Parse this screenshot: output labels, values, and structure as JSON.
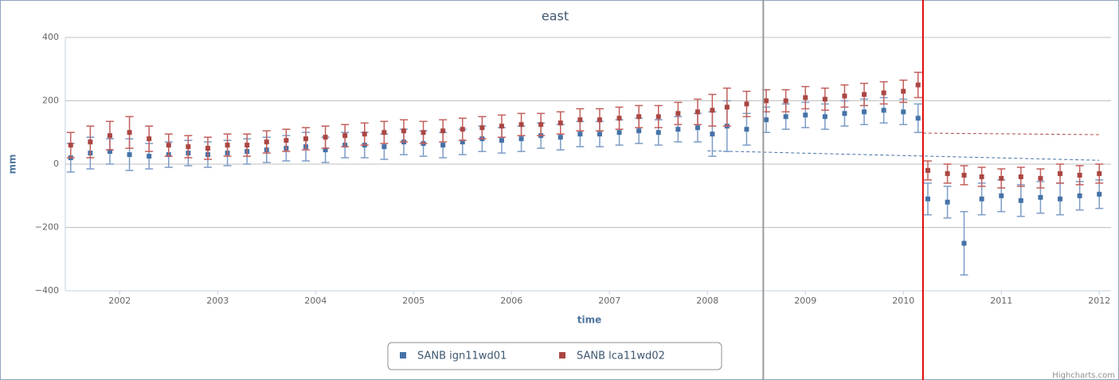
{
  "chart_data": {
    "type": "errorbar-scatter",
    "title": "east",
    "x_label": "time",
    "y_label": "mm",
    "credits": "Highcharts.com",
    "xlim": [
      2001.445,
      2012.12
    ],
    "xticks": [
      2002,
      2003,
      2004,
      2005,
      2006,
      2007,
      2008,
      2009,
      2010,
      2011,
      2012
    ],
    "ylim": [
      -400,
      400
    ],
    "yticks": [
      400,
      200,
      0,
      {
        "value": -200,
        "label": "−200"
      },
      {
        "value": -400,
        "label": "−400"
      }
    ],
    "grid": true,
    "x": [
      2001.5,
      2001.7,
      2001.9,
      2002.1,
      2002.3,
      2002.5,
      2002.7,
      2002.9,
      2003.1,
      2003.3,
      2003.5,
      2003.7,
      2003.9,
      2004.1,
      2004.3,
      2004.5,
      2004.7,
      2004.9,
      2005.1,
      2005.3,
      2005.5,
      2005.7,
      2005.9,
      2006.1,
      2006.3,
      2006.5,
      2006.7,
      2006.9,
      2007.1,
      2007.3,
      2007.5,
      2007.7,
      2007.9,
      2008.05,
      2008.2,
      2008.4,
      2008.6,
      2008.8,
      2009.0,
      2009.2,
      2009.4,
      2009.6,
      2009.8,
      2010.0,
      2010.15,
      2010.25,
      2010.45,
      2010.62,
      2010.8,
      2011.0,
      2011.2,
      2011.4,
      2011.6,
      2011.8,
      2012.0
    ],
    "series": [
      {
        "name": "SANB ign11wd01",
        "color": "#4572A7",
        "error_color": "#7d9cc6",
        "values": [
          20,
          35,
          40,
          30,
          25,
          30,
          35,
          30,
          35,
          40,
          45,
          50,
          55,
          45,
          60,
          60,
          55,
          70,
          65,
          60,
          70,
          80,
          75,
          80,
          90,
          85,
          95,
          95,
          100,
          105,
          100,
          110,
          115,
          95,
          120,
          110,
          140,
          150,
          155,
          150,
          160,
          165,
          170,
          165,
          145,
          -110,
          -120,
          -250,
          -110,
          -100,
          -115,
          -105,
          -110,
          -100,
          -95
        ],
        "errors": [
          45,
          50,
          40,
          50,
          40,
          40,
          40,
          40,
          40,
          40,
          40,
          40,
          45,
          40,
          40,
          40,
          40,
          40,
          40,
          40,
          40,
          40,
          40,
          40,
          40,
          40,
          40,
          40,
          40,
          40,
          40,
          40,
          45,
          70,
          80,
          50,
          40,
          40,
          40,
          40,
          40,
          40,
          40,
          40,
          45,
          50,
          50,
          100,
          50,
          50,
          50,
          50,
          50,
          45,
          45
        ]
      },
      {
        "name": "SANB lca11wd02",
        "color": "#AA4643",
        "error_color": "#c25f5c",
        "values": [
          60,
          70,
          90,
          100,
          80,
          60,
          55,
          50,
          60,
          60,
          70,
          75,
          80,
          85,
          90,
          95,
          100,
          105,
          100,
          105,
          110,
          115,
          120,
          125,
          125,
          130,
          140,
          140,
          145,
          150,
          150,
          160,
          165,
          170,
          180,
          190,
          200,
          200,
          210,
          205,
          215,
          220,
          225,
          230,
          250,
          -20,
          -30,
          -35,
          -40,
          -45,
          -40,
          -45,
          -30,
          -35,
          -30
        ],
        "errors": [
          40,
          50,
          45,
          50,
          40,
          35,
          35,
          35,
          35,
          35,
          35,
          35,
          35,
          35,
          35,
          35,
          35,
          35,
          35,
          35,
          35,
          35,
          35,
          35,
          35,
          35,
          35,
          35,
          35,
          35,
          35,
          35,
          40,
          50,
          60,
          40,
          35,
          35,
          35,
          35,
          35,
          35,
          35,
          35,
          40,
          30,
          30,
          30,
          30,
          30,
          30,
          30,
          30,
          30,
          30
        ]
      }
    ],
    "trend_lines": [
      {
        "color": "#4572A7",
        "x": [
          2008.0,
          2012.0
        ],
        "values": [
          42,
          12
        ]
      },
      {
        "color": "#AA4643",
        "x": [
          2010.2,
          2012.0
        ],
        "values": [
          98,
          93
        ]
      }
    ],
    "plot_lines": [
      {
        "value": 2008.57,
        "color": "#999999"
      },
      {
        "value": 2010.2,
        "color": "#e00000"
      }
    ]
  }
}
